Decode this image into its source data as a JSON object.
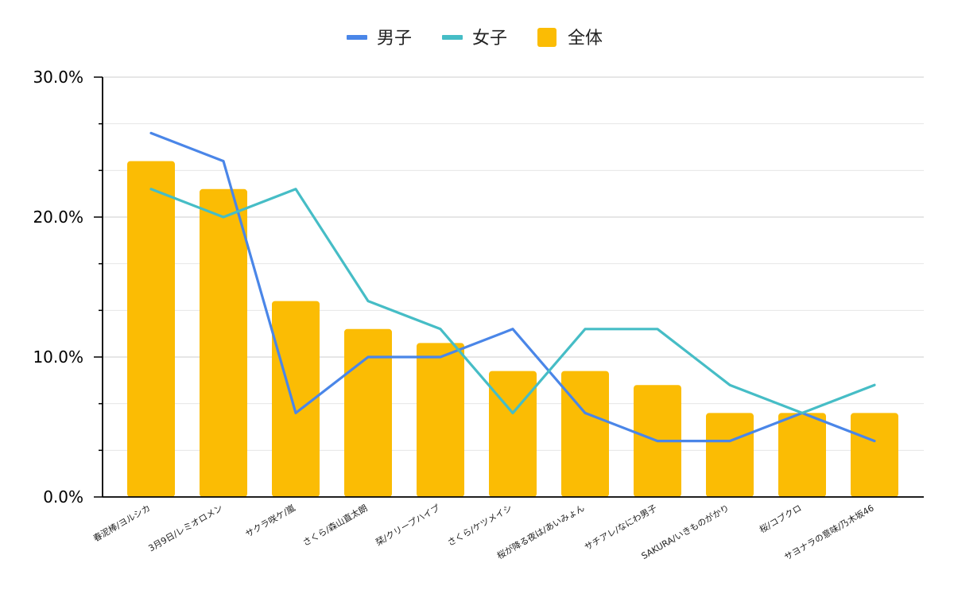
{
  "chart_data": {
    "type": "bar+line",
    "title": "",
    "xlabel": "",
    "ylabel": "",
    "ylim": [
      0,
      30
    ],
    "y_ticks": [
      "0.0%",
      "10.0%",
      "20.0%",
      "30.0%"
    ],
    "grid": true,
    "legend_position": "top-center",
    "categories": [
      "春泥棒/ヨルシカ",
      "3月9日/レミオロメン",
      "サクラ咲ケ/嵐",
      "さくら/森山直太朗",
      "栞/クリープハイプ",
      "さくら/ケツメイシ",
      "桜が降る夜は/あいみょん",
      "サチアレ/なにわ男子",
      "SAKURA/いきものがかり",
      "桜/コブクロ",
      "サヨナラの意味/乃木坂46"
    ],
    "series": [
      {
        "name": "男子",
        "type": "line",
        "color": "#4a86e8",
        "values": [
          26,
          24,
          6,
          10,
          10,
          12,
          6,
          4,
          4,
          6,
          4
        ]
      },
      {
        "name": "女子",
        "type": "line",
        "color": "#46bdc6",
        "values": [
          22,
          20,
          22,
          14,
          12,
          6,
          12,
          12,
          8,
          6,
          8
        ]
      },
      {
        "name": "全体",
        "type": "bar",
        "color": "#fbbc04",
        "values": [
          24,
          22,
          14,
          12,
          11,
          9,
          9,
          8,
          6,
          6,
          6
        ]
      }
    ]
  }
}
